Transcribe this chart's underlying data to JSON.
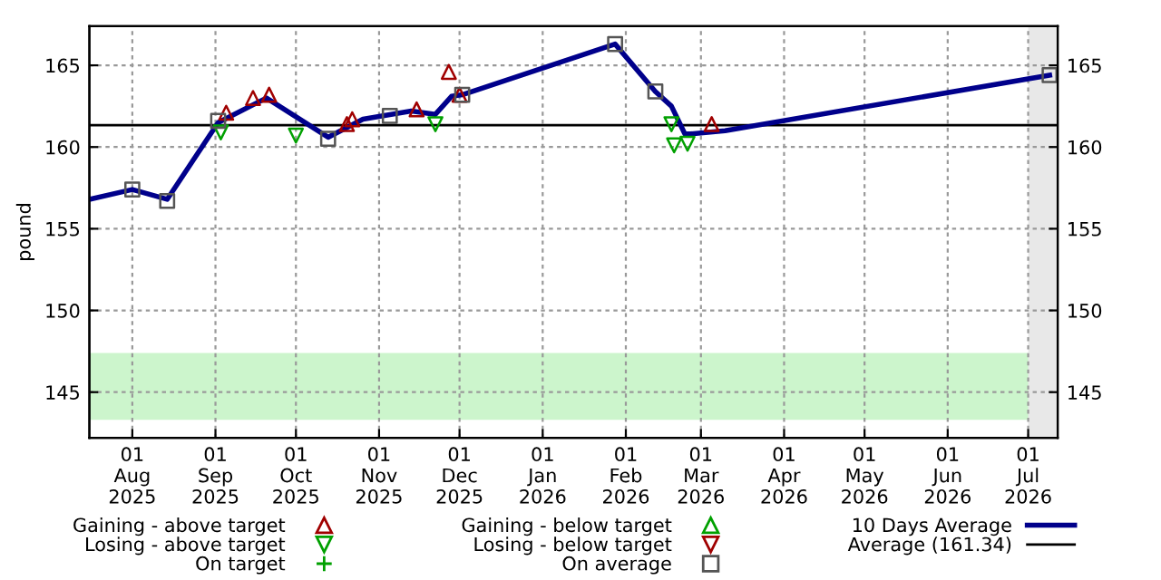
{
  "chart_data": {
    "type": "line",
    "ylabel": "pound",
    "xlim": [
      "2025-07-16",
      "2026-07-12"
    ],
    "xticks": [
      {
        "value": "2025-08-01",
        "label": "01\nAug\n2025"
      },
      {
        "value": "2025-09-01",
        "label": "01\nSep\n2025"
      },
      {
        "value": "2025-10-01",
        "label": "01\nOct\n2025"
      },
      {
        "value": "2025-11-01",
        "label": "01\nNov\n2025"
      },
      {
        "value": "2025-12-01",
        "label": "01\nDec\n2025"
      },
      {
        "value": "2026-01-01",
        "label": "01\nJan\n2026"
      },
      {
        "value": "2026-02-01",
        "label": "01\nFeb\n2026"
      },
      {
        "value": "2026-03-01",
        "label": "01\nMar\n2026"
      },
      {
        "value": "2026-04-01",
        "label": "01\nApr\n2026"
      },
      {
        "value": "2026-05-01",
        "label": "01\nMay\n2026"
      },
      {
        "value": "2026-06-01",
        "label": "01\nJun\n2026"
      },
      {
        "value": "2026-07-01",
        "label": "01\nJul\n2026"
      }
    ],
    "ylim": [
      142.2,
      167.4
    ],
    "yticks": [
      145,
      150,
      155,
      160,
      165
    ],
    "y2lim": [
      142.2,
      167.4
    ],
    "y2ticks": [
      145,
      150,
      155,
      160,
      165
    ],
    "grid": true,
    "legend": "bottom",
    "series": [
      {
        "name": "Gaining - above target",
        "type": "scatter",
        "marker": "triangle",
        "color": "#a00000",
        "x": [
          "2025-09-05",
          "2025-09-15",
          "2025-09-21",
          "2025-10-20",
          "2025-10-22",
          "2025-11-15",
          "2025-11-27",
          "2025-12-01",
          "2026-03-05"
        ],
        "values": [
          162.1,
          163.0,
          163.2,
          161.4,
          161.7,
          162.3,
          164.6,
          163.2,
          161.4
        ]
      },
      {
        "name": "Losing - above target",
        "type": "scatter",
        "marker": "triangle_down",
        "color": "#00a000",
        "x": [
          "2025-09-03",
          "2025-10-01",
          "2025-11-22",
          "2026-02-18",
          "2026-02-19",
          "2026-02-24"
        ],
        "values": [
          160.9,
          160.7,
          161.4,
          161.4,
          160.1,
          160.2
        ]
      },
      {
        "name": "On target",
        "type": "scatter",
        "marker": "cross",
        "color": "#00a000"
      },
      {
        "name": "Gaining - below target",
        "type": "scatter",
        "marker": "triangle",
        "color": "#00a000"
      },
      {
        "name": "Losing - below target",
        "type": "scatter",
        "marker": "triangle_down",
        "color": "#a00000"
      },
      {
        "name": "On average",
        "type": "scatter",
        "marker": "square",
        "color": "#555555",
        "x": [
          "2025-08-01",
          "2025-08-14",
          "2025-09-02",
          "2025-10-13",
          "2025-11-05",
          "2025-12-02",
          "2026-01-28",
          "2026-02-12",
          "2026-07-09"
        ],
        "values": [
          157.4,
          156.7,
          161.6,
          160.5,
          161.9,
          163.2,
          166.3,
          163.4,
          164.4
        ]
      },
      {
        "name": "10 Days Average",
        "marker": "none",
        "line_style": "solid",
        "color": "#00008b",
        "x": [
          "2025-07-16",
          "2025-08-01",
          "2025-08-14",
          "2025-09-02",
          "2025-09-20",
          "2025-10-13",
          "2025-10-26",
          "2025-11-13",
          "2025-11-22",
          "2025-11-28",
          "2025-12-02",
          "2026-01-28",
          "2026-02-12",
          "2026-02-18",
          "2026-02-23",
          "2026-02-25",
          "2026-03-10",
          "2026-07-09"
        ],
        "values": [
          156.8,
          157.4,
          156.8,
          161.5,
          163.0,
          160.6,
          161.7,
          162.2,
          162.0,
          163.1,
          163.2,
          166.3,
          163.4,
          162.5,
          160.8,
          160.8,
          161.0,
          164.4
        ]
      }
    ],
    "ref_lines": [
      {
        "axis": "y",
        "value": 161.34,
        "label": "Average (161.34)",
        "color": "#000000",
        "line_style": "solid"
      }
    ],
    "bands": [
      {
        "axis": "y",
        "from": 143.3,
        "to": 147.4,
        "color": "#ccf5cc"
      },
      {
        "axis": "x",
        "from": "2026-07-01",
        "to": "2026-07-12",
        "color": "#e8e8e8"
      }
    ]
  }
}
